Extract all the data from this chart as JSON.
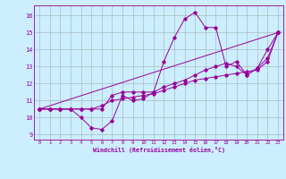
{
  "xlabel": "Windchill (Refroidissement éolien,°C)",
  "bg_color": "#cceeff",
  "line_color": "#990099",
  "xlim": [
    -0.5,
    23.5
  ],
  "ylim": [
    8.7,
    16.6
  ],
  "xticks": [
    0,
    1,
    2,
    3,
    4,
    5,
    6,
    7,
    8,
    9,
    10,
    11,
    12,
    13,
    14,
    15,
    16,
    17,
    18,
    19,
    20,
    21,
    22,
    23
  ],
  "yticks": [
    9,
    10,
    11,
    12,
    13,
    14,
    15,
    16
  ],
  "grid_color": "#aabbbb",
  "series": [
    {
      "x": [
        0,
        1,
        2,
        3,
        4,
        5,
        6,
        7,
        8,
        9,
        10,
        11,
        12,
        13,
        14,
        15,
        16,
        17,
        18,
        19,
        20,
        21,
        22,
        23
      ],
      "y": [
        10.5,
        10.5,
        10.5,
        10.5,
        10.0,
        9.4,
        9.3,
        9.8,
        11.3,
        11.0,
        11.1,
        11.5,
        13.3,
        14.7,
        15.8,
        16.2,
        15.3,
        15.3,
        13.0,
        13.3,
        12.5,
        12.9,
        14.0,
        15.0
      ]
    },
    {
      "x": [
        0,
        23
      ],
      "y": [
        10.5,
        15.0
      ]
    },
    {
      "x": [
        0,
        1,
        2,
        3,
        4,
        5,
        6,
        7,
        8,
        9,
        10,
        11,
        12,
        13,
        14,
        15,
        16,
        17,
        18,
        19,
        20,
        21,
        22,
        23
      ],
      "y": [
        10.5,
        10.5,
        10.5,
        10.5,
        10.5,
        10.5,
        10.5,
        11.3,
        11.5,
        11.5,
        11.5,
        11.5,
        11.8,
        12.0,
        12.2,
        12.5,
        12.8,
        13.0,
        13.2,
        13.0,
        12.5,
        12.9,
        13.5,
        15.0
      ]
    },
    {
      "x": [
        0,
        1,
        2,
        3,
        4,
        5,
        6,
        7,
        8,
        9,
        10,
        11,
        12,
        13,
        14,
        15,
        16,
        17,
        18,
        19,
        20,
        21,
        22,
        23
      ],
      "y": [
        10.5,
        10.5,
        10.5,
        10.5,
        10.5,
        10.5,
        10.7,
        11.0,
        11.1,
        11.2,
        11.3,
        11.4,
        11.6,
        11.8,
        12.0,
        12.2,
        12.3,
        12.4,
        12.5,
        12.6,
        12.7,
        12.8,
        13.3,
        15.0
      ]
    }
  ]
}
